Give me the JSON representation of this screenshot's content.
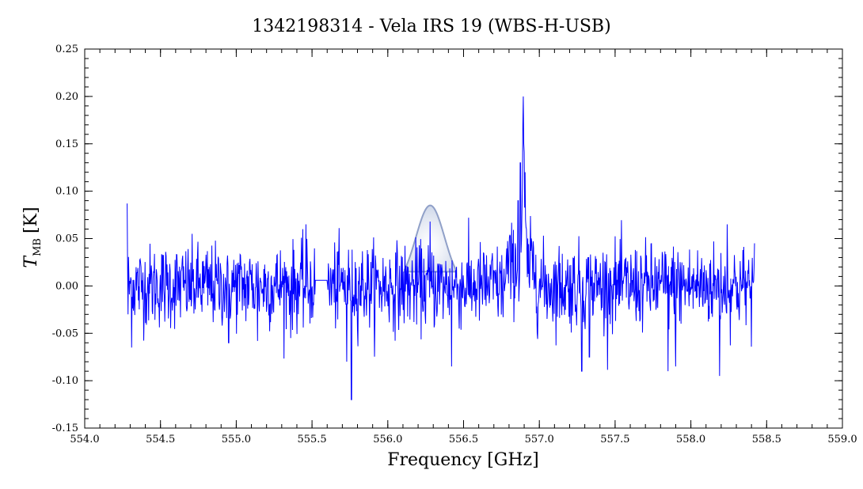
{
  "chart_data": {
    "type": "line",
    "title": "1342198314 - Vela IRS 19 (WBS-H-USB)",
    "xlabel": "Frequency [GHz]",
    "ylabel": {
      "symbol": "T",
      "subscript": "MB",
      "unit": "[K]"
    },
    "xlim": [
      554.0,
      559.0
    ],
    "ylim": [
      -0.15,
      0.25
    ],
    "x_ticks": [
      554.0,
      554.5,
      555.0,
      555.5,
      556.0,
      556.5,
      557.0,
      557.5,
      558.0,
      558.5,
      559.0
    ],
    "x_tick_labels": [
      "554.0",
      "554.5",
      "555.0",
      "555.5",
      "556.0",
      "556.5",
      "557.0",
      "557.5",
      "558.0",
      "558.5",
      "559.0"
    ],
    "y_ticks": [
      -0.15,
      -0.1,
      -0.05,
      0.0,
      0.05,
      0.1,
      0.15,
      0.2,
      0.25
    ],
    "y_tick_labels": [
      "-0.15",
      "-0.10",
      "-0.05",
      "0.00",
      "0.05",
      "0.10",
      "0.15",
      "0.20",
      "0.25"
    ],
    "grid": false,
    "colors": {
      "spectrum": "#0000ff",
      "feature_fill": "#c8d2e6",
      "feature_edge": "#90a0c8"
    },
    "series": [
      {
        "x_start": 554.28,
        "x_end": 558.42,
        "noise_rms": 0.022,
        "baseline": 0.0,
        "gap": [
          555.52,
          555.6
        ],
        "points": [
          [
            554.28,
            0.087
          ],
          [
            554.285,
            -0.03
          ],
          [
            554.31,
            -0.065
          ],
          [
            554.95,
            -0.06
          ],
          [
            555.14,
            -0.058
          ],
          [
            555.36,
            -0.055
          ],
          [
            555.46,
            0.065
          ],
          [
            555.76,
            -0.12
          ],
          [
            555.73,
            -0.08
          ],
          [
            556.28,
            0.068
          ],
          [
            556.42,
            -0.085
          ],
          [
            556.84,
            0.045
          ],
          [
            556.86,
            0.09
          ],
          [
            556.875,
            0.13
          ],
          [
            556.89,
            0.17
          ],
          [
            556.895,
            0.2
          ],
          [
            556.905,
            0.12
          ],
          [
            556.915,
            0.06
          ],
          [
            556.95,
            0.045
          ],
          [
            557.28,
            -0.09
          ],
          [
            557.33,
            -0.075
          ],
          [
            557.85,
            -0.09
          ],
          [
            557.9,
            -0.085
          ],
          [
            558.19,
            -0.095
          ],
          [
            558.24,
            0.065
          ],
          [
            558.42,
            0.045
          ]
        ]
      }
    ],
    "feature": {
      "shape": "gaussian",
      "center": 556.28,
      "peak": 0.085,
      "half_width": 0.17
    }
  }
}
